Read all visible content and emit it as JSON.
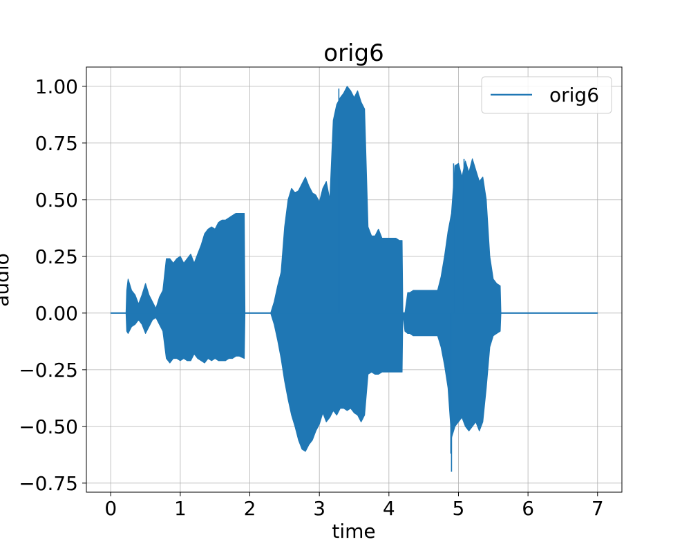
{
  "chart_data": {
    "type": "line",
    "title": "orig6",
    "xlabel": "time",
    "ylabel": "audio",
    "xlim": [
      -0.35,
      7.35
    ],
    "ylim": [
      -0.79,
      1.085
    ],
    "x_ticks": [
      0,
      1,
      2,
      3,
      4,
      5,
      6,
      7
    ],
    "x_tick_labels": [
      "0",
      "1",
      "2",
      "3",
      "4",
      "5",
      "6",
      "7"
    ],
    "y_ticks": [
      -0.75,
      -0.5,
      -0.25,
      0.0,
      0.25,
      0.5,
      0.75,
      1.0
    ],
    "y_tick_labels": [
      "−0.75",
      "−0.50",
      "−0.25",
      "0.00",
      "0.25",
      "0.50",
      "0.75",
      "1.00"
    ],
    "grid": true,
    "legend": {
      "position": "top-right",
      "entries": [
        "orig6"
      ]
    },
    "series": [
      {
        "name": "orig6",
        "color": "#1f77b4",
        "envelope_time": [
          0.0,
          0.22,
          0.23,
          0.25,
          0.3,
          0.35,
          0.4,
          0.45,
          0.5,
          0.55,
          0.6,
          0.65,
          0.7,
          0.75,
          0.8,
          0.85,
          0.9,
          0.95,
          1.0,
          1.05,
          1.1,
          1.15,
          1.2,
          1.25,
          1.3,
          1.35,
          1.4,
          1.45,
          1.5,
          1.55,
          1.6,
          1.65,
          1.7,
          1.75,
          1.8,
          1.85,
          1.92,
          1.93,
          2.3,
          2.35,
          2.4,
          2.45,
          2.5,
          2.55,
          2.6,
          2.65,
          2.7,
          2.75,
          2.8,
          2.85,
          2.9,
          2.95,
          3.0,
          3.05,
          3.1,
          3.15,
          3.2,
          3.25,
          3.3,
          3.35,
          3.4,
          3.45,
          3.5,
          3.55,
          3.6,
          3.65,
          3.7,
          3.75,
          3.8,
          3.85,
          3.9,
          3.95,
          4.0,
          4.05,
          4.1,
          4.15,
          4.19,
          4.2,
          4.23,
          4.27,
          4.3,
          4.35,
          4.4,
          4.45,
          4.5,
          4.55,
          4.6,
          4.65,
          4.7,
          4.75,
          4.8,
          4.85,
          4.9,
          4.95,
          5.0,
          5.05,
          5.1,
          5.15,
          5.2,
          5.25,
          5.3,
          5.35,
          5.4,
          5.45,
          5.5,
          5.55,
          5.6,
          5.61,
          7.0
        ],
        "envelope_max": [
          0.0,
          0.0,
          0.1,
          0.15,
          0.1,
          0.08,
          0.04,
          0.08,
          0.13,
          0.08,
          0.05,
          0.02,
          0.07,
          0.1,
          0.24,
          0.24,
          0.22,
          0.24,
          0.25,
          0.22,
          0.24,
          0.26,
          0.22,
          0.26,
          0.3,
          0.35,
          0.37,
          0.38,
          0.37,
          0.4,
          0.41,
          0.41,
          0.42,
          0.43,
          0.44,
          0.44,
          0.44,
          0.0,
          0.0,
          0.05,
          0.12,
          0.18,
          0.38,
          0.5,
          0.55,
          0.53,
          0.54,
          0.57,
          0.6,
          0.56,
          0.53,
          0.52,
          0.49,
          0.55,
          0.58,
          0.5,
          0.85,
          0.92,
          0.95,
          0.97,
          1.0,
          0.98,
          0.95,
          0.98,
          0.93,
          0.9,
          0.38,
          0.34,
          0.34,
          0.37,
          0.33,
          0.33,
          0.33,
          0.33,
          0.33,
          0.32,
          0.32,
          0.0,
          0.0,
          0.09,
          0.09,
          0.1,
          0.1,
          0.1,
          0.1,
          0.1,
          0.1,
          0.1,
          0.1,
          0.16,
          0.25,
          0.36,
          0.44,
          0.65,
          0.66,
          0.6,
          0.67,
          0.62,
          0.68,
          0.63,
          0.58,
          0.6,
          0.5,
          0.25,
          0.15,
          0.13,
          0.12,
          0.0,
          0.0
        ],
        "envelope_min": [
          0.0,
          0.0,
          -0.08,
          -0.09,
          -0.06,
          -0.05,
          -0.03,
          -0.05,
          -0.09,
          -0.06,
          -0.03,
          -0.02,
          -0.05,
          -0.08,
          -0.2,
          -0.22,
          -0.2,
          -0.2,
          -0.21,
          -0.2,
          -0.21,
          -0.21,
          -0.18,
          -0.2,
          -0.21,
          -0.22,
          -0.2,
          -0.21,
          -0.2,
          -0.21,
          -0.21,
          -0.21,
          -0.2,
          -0.2,
          -0.19,
          -0.19,
          -0.2,
          0.0,
          0.0,
          -0.05,
          -0.12,
          -0.2,
          -0.3,
          -0.38,
          -0.45,
          -0.5,
          -0.56,
          -0.6,
          -0.61,
          -0.58,
          -0.56,
          -0.52,
          -0.49,
          -0.44,
          -0.48,
          -0.46,
          -0.43,
          -0.45,
          -0.42,
          -0.42,
          -0.43,
          -0.42,
          -0.44,
          -0.45,
          -0.48,
          -0.45,
          -0.27,
          -0.26,
          -0.27,
          -0.27,
          -0.26,
          -0.26,
          -0.26,
          -0.26,
          -0.26,
          -0.26,
          -0.26,
          0.0,
          -0.08,
          -0.09,
          -0.09,
          -0.1,
          -0.1,
          -0.1,
          -0.1,
          -0.1,
          -0.1,
          -0.1,
          -0.1,
          -0.15,
          -0.23,
          -0.33,
          -0.55,
          -0.5,
          -0.48,
          -0.46,
          -0.5,
          -0.52,
          -0.5,
          -0.48,
          -0.52,
          -0.48,
          -0.33,
          -0.15,
          -0.1,
          -0.09,
          -0.08,
          0.0,
          0.0
        ],
        "spikes": [
          [
            4.9,
            -0.7
          ],
          [
            4.89,
            -0.62
          ],
          [
            3.28,
            0.99
          ],
          [
            5.08,
            0.68
          ],
          [
            4.93,
            0.66
          ]
        ]
      }
    ]
  }
}
